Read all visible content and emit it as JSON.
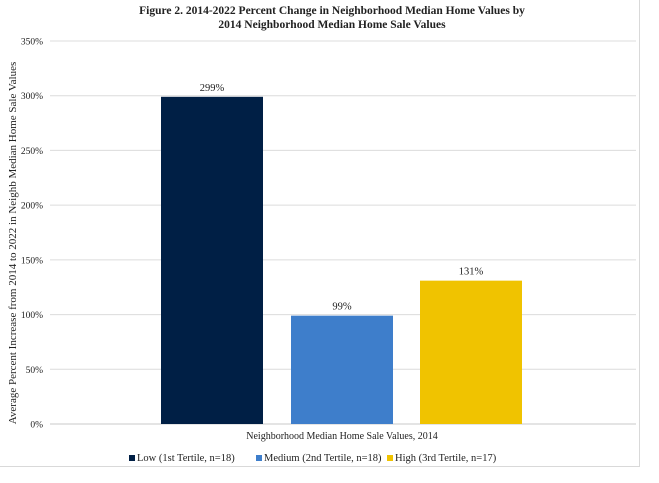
{
  "chart_data": {
    "type": "bar",
    "title_line1": "Figure 2. 2014-2022 Percent Change in Neighborhood Median Home Values by",
    "title_line2": "2014 Neighborhood Median Home Sale Values",
    "xlabel": "Neighborhood Median Home Sale Values, 2014",
    "ylabel": "Average Percent Increase from 2014 to 2022 in Neighb Median Home Sale Values",
    "ylim": [
      0,
      350
    ],
    "yticks": [
      0,
      50,
      100,
      150,
      200,
      250,
      300,
      350
    ],
    "ytick_labels": [
      "0%",
      "50%",
      "100%",
      "150%",
      "200%",
      "250%",
      "300%",
      "350%"
    ],
    "grid": true,
    "legend_position": "bottom",
    "series": [
      {
        "name": "Low (1st Tertile, n=18)",
        "values": [
          299
        ],
        "label": "299%",
        "color": "#001f45"
      },
      {
        "name": "Medium (2nd Tertile, n=18)",
        "values": [
          99
        ],
        "label": "99%",
        "color": "#3e7ecb"
      },
      {
        "name": "High (3rd Tertile, n=17)",
        "values": [
          131
        ],
        "label": "131%",
        "color": "#f0c300"
      }
    ]
  }
}
